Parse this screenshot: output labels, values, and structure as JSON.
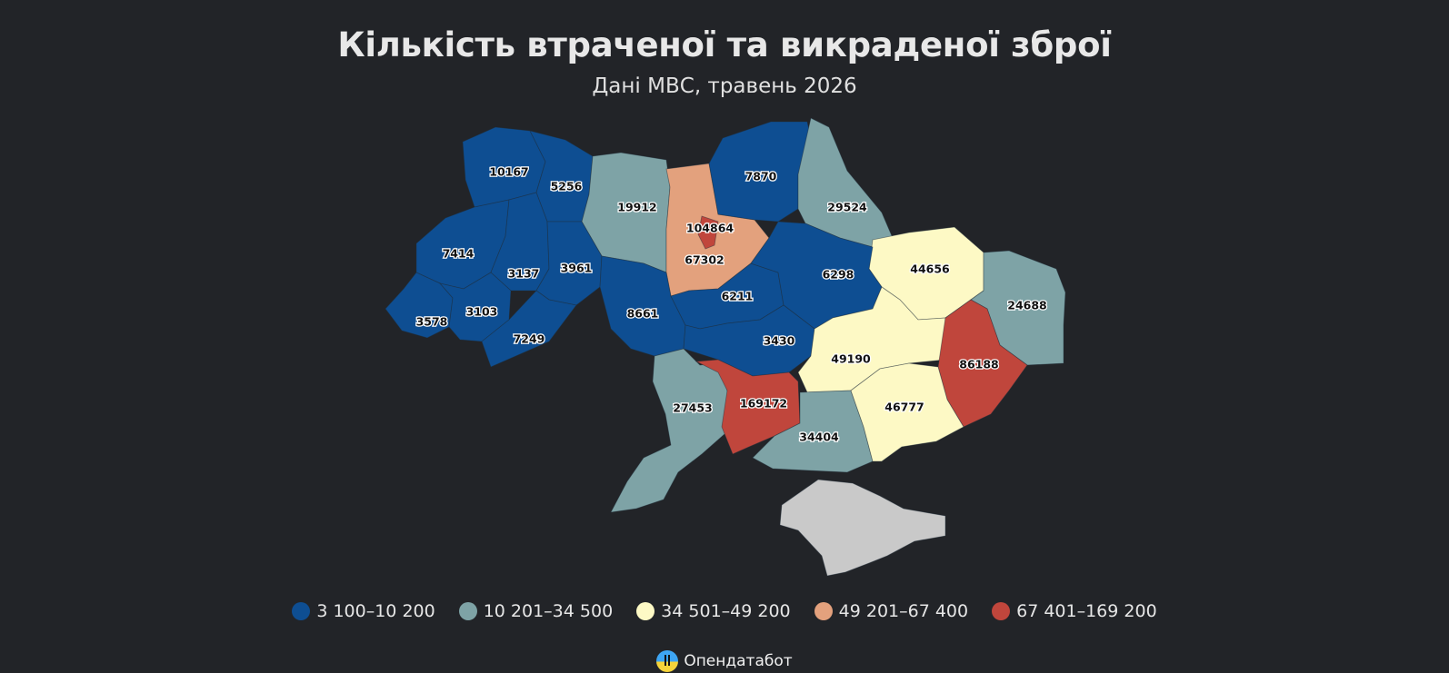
{
  "title": "Кількість втраченої та викраденої зброї",
  "subtitle": "Дані МВС, травень 2026",
  "colors": {
    "background": "#222428",
    "bin1": "#0e4e92",
    "bin2": "#7ea3a6",
    "bin3": "#fdf9c5",
    "bin4": "#e3a17d",
    "bin5": "#c0463c",
    "nodata": "#c9c9c9",
    "kyiv_city": "#c0463c"
  },
  "legend": [
    {
      "label": "3 100–10 200",
      "color": "#0e4e92"
    },
    {
      "label": "10 201–34 500",
      "color": "#7ea3a6"
    },
    {
      "label": "34 501–49 200",
      "color": "#fdf9c5"
    },
    {
      "label": "49 201–67 400",
      "color": "#e3a17d"
    },
    {
      "label": "67 401–169 200",
      "color": "#c0463c"
    }
  ],
  "credit": "Опендатабот",
  "credit_icon": "opendatabot-logo-icon",
  "regions": [
    {
      "id": "volyn",
      "value": "10167",
      "color": "#0e4e92"
    },
    {
      "id": "rivne",
      "value": "5256",
      "color": "#0e4e92"
    },
    {
      "id": "zhytomyr",
      "value": "19912",
      "color": "#7ea3a6"
    },
    {
      "id": "kyiv-oblast",
      "value": "67302",
      "color": "#e3a17d"
    },
    {
      "id": "kyiv-city",
      "value": "104864",
      "color": "#c0463c"
    },
    {
      "id": "chernihiv",
      "value": "7870",
      "color": "#0e4e92"
    },
    {
      "id": "sumy",
      "value": "29524",
      "color": "#7ea3a6"
    },
    {
      "id": "kharkiv",
      "value": "44656",
      "color": "#fdf9c5"
    },
    {
      "id": "luhansk",
      "value": "24688",
      "color": "#7ea3a6"
    },
    {
      "id": "lviv",
      "value": "7414",
      "color": "#0e4e92"
    },
    {
      "id": "ternopil",
      "value": "3137",
      "color": "#0e4e92"
    },
    {
      "id": "khmelnytskyi",
      "value": "3961",
      "color": "#0e4e92"
    },
    {
      "id": "vinnytsia",
      "value": "8661",
      "color": "#0e4e92"
    },
    {
      "id": "cherkasy",
      "value": "6211",
      "color": "#0e4e92"
    },
    {
      "id": "poltava",
      "value": "6298",
      "color": "#0e4e92"
    },
    {
      "id": "zakarpattia",
      "value": "3578",
      "color": "#0e4e92"
    },
    {
      "id": "ivano-frankivsk",
      "value": "3103",
      "color": "#0e4e92"
    },
    {
      "id": "chernivtsi",
      "value": "7249",
      "color": "#0e4e92"
    },
    {
      "id": "kirovohrad",
      "value": "3430",
      "color": "#0e4e92"
    },
    {
      "id": "dnipropetrovsk",
      "value": "49190",
      "color": "#fdf9c5"
    },
    {
      "id": "donetsk",
      "value": "86188",
      "color": "#c0463c"
    },
    {
      "id": "odesa",
      "value": "27453",
      "color": "#7ea3a6"
    },
    {
      "id": "mykolaiv",
      "value": "169172",
      "color": "#c0463c"
    },
    {
      "id": "kherson",
      "value": "34404",
      "color": "#7ea3a6"
    },
    {
      "id": "zaporizhzhia",
      "value": "46777",
      "color": "#fdf9c5"
    },
    {
      "id": "crimea",
      "value": "",
      "color": "#c9c9c9"
    }
  ]
}
